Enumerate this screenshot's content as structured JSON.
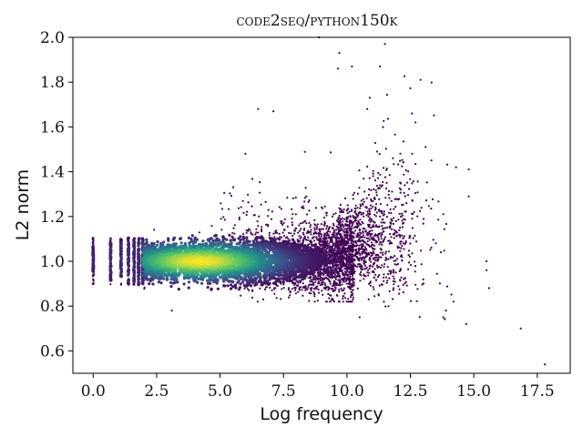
{
  "chart_data": {
    "type": "scatter",
    "title": "code2seq/python150k",
    "xlabel": "Log frequency",
    "ylabel": "L2 norm",
    "xlim": [
      -0.8,
      18.8
    ],
    "ylim": [
      0.5,
      2.0
    ],
    "x_ticks": [
      0.0,
      2.5,
      5.0,
      7.5,
      10.0,
      12.5,
      15.0,
      17.5
    ],
    "x_tick_labels": [
      "0.0",
      "2.5",
      "5.0",
      "7.5",
      "10.0",
      "12.5",
      "15.0",
      "17.5"
    ],
    "y_ticks": [
      0.6,
      0.8,
      1.0,
      1.2,
      1.4,
      1.6,
      1.8,
      2.0
    ],
    "y_tick_labels": [
      "0.6",
      "0.8",
      "1.0",
      "1.2",
      "1.4",
      "1.6",
      "1.8",
      "2.0"
    ],
    "colormap": "viridis",
    "color_encoding": "point density",
    "colors": {
      "low_density": "#440154",
      "mid_low": "#3b528b",
      "mid": "#21918c",
      "mid_high": "#5ec962",
      "high_density": "#fde725"
    },
    "grid": false,
    "legend": "none",
    "distribution": {
      "discrete_x_columns": [
        0.0,
        0.69,
        1.1,
        1.39,
        1.61,
        1.79,
        1.95
      ],
      "dense_core_center": [
        4.2,
        1.0
      ],
      "band_y_range_below_x10": [
        0.86,
        1.14
      ]
    },
    "outlier_points": [
      [
        17.8,
        0.54
      ],
      [
        16.85,
        0.7
      ],
      [
        14.7,
        0.72
      ],
      [
        13.9,
        0.78
      ],
      [
        13.8,
        0.75
      ],
      [
        14.2,
        0.82
      ],
      [
        15.6,
        0.88
      ],
      [
        15.5,
        0.96
      ],
      [
        15.5,
        1.0
      ],
      [
        14.8,
        1.29
      ],
      [
        14.8,
        1.41
      ],
      [
        14.3,
        1.42
      ],
      [
        13.8,
        1.21
      ],
      [
        9.65,
        1.86
      ],
      [
        9.7,
        1.93
      ],
      [
        10.2,
        1.87
      ],
      [
        10.9,
        1.73
      ],
      [
        11.5,
        1.97
      ],
      [
        10.8,
        1.68
      ],
      [
        11.3,
        1.87
      ],
      [
        10.5,
        0.75
      ],
      [
        3.1,
        0.78
      ],
      [
        8.9,
        2.0
      ],
      [
        6.0,
        1.48
      ],
      [
        7.1,
        1.67
      ],
      [
        6.5,
        1.68
      ],
      [
        12.7,
        1.62
      ],
      [
        12.9,
        1.81
      ],
      [
        13.1,
        1.51
      ]
    ]
  }
}
